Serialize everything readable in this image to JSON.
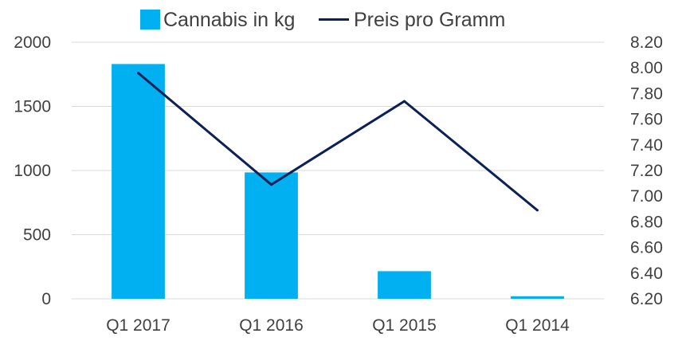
{
  "chart_data": {
    "type": "bar",
    "categories": [
      "Q1 2017",
      "Q1 2016",
      "Q1 2015",
      "Q1 2014"
    ],
    "series": [
      {
        "name": "Cannabis in kg",
        "type": "bar",
        "axis": "left",
        "color": "#00b0f0",
        "values": [
          1830,
          985,
          215,
          20
        ]
      },
      {
        "name": "Preis pro Gramm",
        "type": "line",
        "axis": "right",
        "color": "#0c2155",
        "values": [
          7.96,
          7.09,
          7.74,
          6.89
        ]
      }
    ],
    "left_axis": {
      "min": 0,
      "max": 2000,
      "ticks": [
        "0",
        "500",
        "1000",
        "1500",
        "2000"
      ]
    },
    "right_axis": {
      "min": 6.2,
      "max": 8.2,
      "ticks": [
        "6.20",
        "6.40",
        "6.60",
        "6.80",
        "7.00",
        "7.20",
        "7.40",
        "7.60",
        "7.80",
        "8.00",
        "8.20"
      ]
    },
    "grid": true,
    "legend_position": "top-center"
  }
}
